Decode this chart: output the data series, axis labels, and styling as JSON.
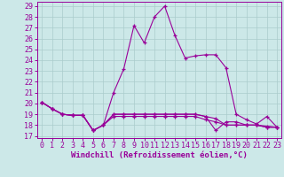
{
  "xlabel": "Windchill (Refroidissement éolien,°C)",
  "bg_color": "#cce8e8",
  "grid_color": "#aacccc",
  "line_color": "#990099",
  "xlim_min": -0.5,
  "xlim_max": 23.4,
  "ylim_min": 16.8,
  "ylim_max": 29.4,
  "xticks": [
    0,
    1,
    2,
    3,
    4,
    5,
    6,
    7,
    8,
    9,
    10,
    11,
    12,
    13,
    14,
    15,
    16,
    17,
    18,
    19,
    20,
    21,
    22,
    23
  ],
  "yticks": [
    17,
    18,
    19,
    20,
    21,
    22,
    23,
    24,
    25,
    26,
    27,
    28,
    29
  ],
  "line1_x": [
    0,
    1,
    2,
    3,
    4,
    5,
    6,
    7,
    8,
    9,
    10,
    11,
    12,
    13,
    14,
    15,
    16,
    17,
    18,
    19,
    20,
    21,
    22,
    23
  ],
  "line1_y": [
    20.1,
    19.5,
    19.0,
    18.9,
    18.9,
    17.5,
    18.0,
    21.0,
    23.2,
    27.2,
    25.6,
    28.0,
    29.0,
    26.3,
    24.2,
    24.4,
    24.5,
    24.5,
    23.3,
    19.0,
    18.5,
    18.1,
    18.8,
    17.8
  ],
  "line2_x": [
    0,
    1,
    2,
    3,
    4,
    5,
    6,
    7,
    8,
    9,
    10,
    11,
    12,
    13,
    14,
    15,
    16,
    17,
    18,
    19,
    20,
    21,
    22,
    23
  ],
  "line2_y": [
    20.1,
    19.5,
    19.0,
    18.9,
    18.9,
    17.5,
    18.0,
    19.0,
    19.0,
    19.0,
    19.0,
    19.0,
    19.0,
    19.0,
    19.0,
    19.0,
    18.8,
    18.6,
    18.0,
    18.0,
    18.0,
    18.0,
    17.8,
    17.8
  ],
  "line3_x": [
    0,
    1,
    2,
    3,
    4,
    5,
    6,
    7,
    8,
    9,
    10,
    11,
    12,
    13,
    14,
    15,
    16,
    17,
    18,
    19,
    20,
    21,
    22,
    23
  ],
  "line3_y": [
    20.1,
    19.5,
    19.0,
    18.9,
    18.9,
    17.5,
    18.0,
    19.0,
    19.0,
    19.0,
    19.0,
    19.0,
    19.0,
    19.0,
    19.0,
    19.0,
    18.8,
    17.5,
    18.3,
    18.3,
    18.0,
    18.0,
    17.9,
    17.8
  ],
  "line4_x": [
    0,
    1,
    2,
    3,
    4,
    5,
    6,
    7,
    8,
    9,
    10,
    11,
    12,
    13,
    14,
    15,
    16,
    17,
    18,
    19,
    20,
    21,
    22,
    23
  ],
  "line4_y": [
    20.1,
    19.5,
    19.0,
    18.9,
    18.9,
    17.5,
    18.0,
    18.8,
    18.8,
    18.8,
    18.8,
    18.8,
    18.8,
    18.8,
    18.8,
    18.8,
    18.5,
    18.3,
    18.0,
    18.0,
    18.0,
    18.0,
    17.8,
    17.8
  ],
  "tick_fontsize": 6.0,
  "xlabel_fontsize": 6.5,
  "marker_size": 3.5,
  "line_width": 0.8
}
